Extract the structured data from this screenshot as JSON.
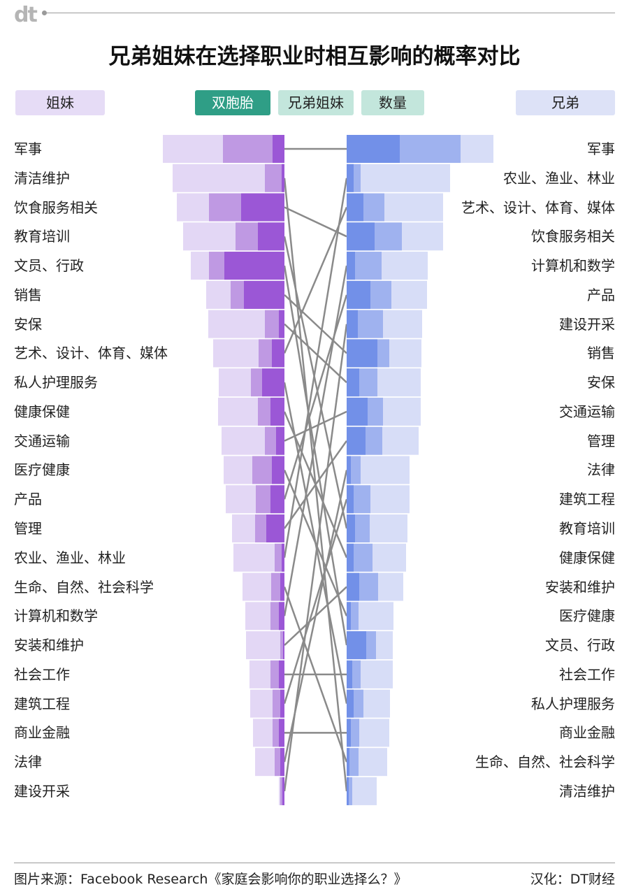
{
  "header": {
    "logo": "dt",
    "title": "兄弟姐妹在选择职业时相互影响的概率对比"
  },
  "legend": {
    "sisters": "姐妹",
    "twins": "双胞胎",
    "siblings": "兄弟姐妹",
    "count": "数量",
    "brothers": "兄弟"
  },
  "colors": {
    "sisters_light": "#e3d7f5",
    "sisters_mid": "#bf99e3",
    "sisters_dark": "#9b57d6",
    "brothers_light": "#d7ddf7",
    "brothers_mid": "#9fb2ef",
    "brothers_dark": "#7290e8",
    "connector": "#8a8a8a",
    "twins": "#2f9e86",
    "siblings": "#c3e6dc"
  },
  "chart_data": {
    "type": "bar",
    "left_title": "姐妹",
    "right_title": "兄弟",
    "left": [
      {
        "label": "军事",
        "light": 174,
        "mid": 88,
        "dark": 17
      },
      {
        "label": "清洁维护",
        "light": 160,
        "mid": 28,
        "dark": 4
      },
      {
        "label": "饮食服务相关",
        "light": 154,
        "mid": 108,
        "dark": 62
      },
      {
        "label": "教育培训",
        "light": 145,
        "mid": 70,
        "dark": 38
      },
      {
        "label": "文员、行政",
        "light": 134,
        "mid": 108,
        "dark": 86
      },
      {
        "label": "销售",
        "light": 112,
        "mid": 77,
        "dark": 58
      },
      {
        "label": "安保",
        "light": 109,
        "mid": 28,
        "dark": 8
      },
      {
        "label": "艺术、设计、体育、媒体",
        "light": 102,
        "mid": 37,
        "dark": 18
      },
      {
        "label": "私人护理服务",
        "light": 94,
        "mid": 48,
        "dark": 32
      },
      {
        "label": "健康保健",
        "light": 95,
        "mid": 38,
        "dark": 20
      },
      {
        "label": "交通运输",
        "light": 90,
        "mid": 28,
        "dark": 12
      },
      {
        "label": "医疗健康",
        "light": 87,
        "mid": 46,
        "dark": 18
      },
      {
        "label": "产品",
        "light": 84,
        "mid": 41,
        "dark": 20
      },
      {
        "label": "管理",
        "light": 75,
        "mid": 42,
        "dark": 26
      },
      {
        "label": "农业、渔业、林业",
        "light": 73,
        "mid": 14,
        "dark": 4
      },
      {
        "label": "生命、自然、社会科学",
        "light": 60,
        "mid": 19,
        "dark": 6
      },
      {
        "label": "计算机和数学",
        "light": 56,
        "mid": 20,
        "dark": 8
      },
      {
        "label": "安装和维护",
        "light": 55,
        "mid": 6,
        "dark": 2
      },
      {
        "label": "社会工作",
        "light": 50,
        "mid": 20,
        "dark": 8
      },
      {
        "label": "建筑工程",
        "light": 49,
        "mid": 17,
        "dark": 6
      },
      {
        "label": "商业金融",
        "light": 45,
        "mid": 17,
        "dark": 8
      },
      {
        "label": "法律",
        "light": 42,
        "mid": 14,
        "dark": 6
      },
      {
        "label": "建设开采",
        "light": 8,
        "mid": 6,
        "dark": 3
      }
    ],
    "right": [
      {
        "label": "军事",
        "light": 210,
        "mid": 163,
        "dark": 76
      },
      {
        "label": "农业、渔业、林业",
        "light": 148,
        "mid": 20,
        "dark": 10
      },
      {
        "label": "艺术、设计、体育、媒体",
        "light": 138,
        "mid": 54,
        "dark": 24
      },
      {
        "label": "饮食服务相关",
        "light": 138,
        "mid": 79,
        "dark": 40
      },
      {
        "label": "计算机和数学",
        "light": 116,
        "mid": 50,
        "dark": 12
      },
      {
        "label": "产品",
        "light": 115,
        "mid": 64,
        "dark": 34
      },
      {
        "label": "建设开采",
        "light": 108,
        "mid": 52,
        "dark": 16
      },
      {
        "label": "销售",
        "light": 107,
        "mid": 61,
        "dark": 44
      },
      {
        "label": "安保",
        "light": 106,
        "mid": 44,
        "dark": 18
      },
      {
        "label": "交通运输",
        "light": 106,
        "mid": 52,
        "dark": 30
      },
      {
        "label": "管理",
        "light": 103,
        "mid": 51,
        "dark": 27
      },
      {
        "label": "法律",
        "light": 90,
        "mid": 20,
        "dark": 6
      },
      {
        "label": "建筑工程",
        "light": 90,
        "mid": 34,
        "dark": 10
      },
      {
        "label": "教育培训",
        "light": 87,
        "mid": 33,
        "dark": 12
      },
      {
        "label": "健康保健",
        "light": 85,
        "mid": 37,
        "dark": 10
      },
      {
        "label": "安装和维护",
        "light": 81,
        "mid": 45,
        "dark": 18
      },
      {
        "label": "医疗健康",
        "light": 67,
        "mid": 17,
        "dark": 6
      },
      {
        "label": "文员、行政",
        "light": 66,
        "mid": 42,
        "dark": 28
      },
      {
        "label": "社会工作",
        "light": 66,
        "mid": 20,
        "dark": 8
      },
      {
        "label": "私人护理服务",
        "light": 62,
        "mid": 24,
        "dark": 10
      },
      {
        "label": "商业金融",
        "light": 61,
        "mid": 18,
        "dark": 6
      },
      {
        "label": "生命、自然、社会科学",
        "light": 58,
        "mid": 17,
        "dark": 4
      },
      {
        "label": "清洁维护",
        "light": 43,
        "mid": 8,
        "dark": 3
      }
    ]
  },
  "footer": {
    "source": "图片来源：Facebook Research《家庭会影响你的职业选择么？》",
    "credit": "汉化：DT财经"
  }
}
